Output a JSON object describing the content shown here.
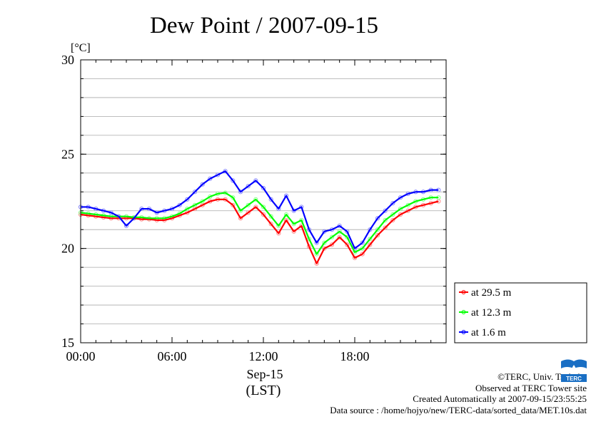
{
  "title": "Dew Point / 2007-09-15",
  "chart_data": {
    "type": "line",
    "title": "Dew Point / 2007-09-15",
    "ylabel": "[°C]",
    "xlabel_lines": [
      "Sep-15",
      "(LST)"
    ],
    "xlim": [
      0,
      24
    ],
    "ylim": [
      15,
      30
    ],
    "x_ticks": [
      0,
      6,
      12,
      18
    ],
    "x_tick_labels": [
      "00:00",
      "06:00",
      "12:00",
      "18:00"
    ],
    "y_ticks": [
      15,
      20,
      25,
      30
    ],
    "y_tick_labels": [
      "15",
      "20",
      "25",
      "30"
    ],
    "y_minor_step": 1,
    "grid": true,
    "legend_position": "bottom-right-outside",
    "x_unit": "hours (LST)",
    "series": [
      {
        "name": "at 29.5 m",
        "color": "#ff0000",
        "x": [
          0,
          0.5,
          1,
          1.5,
          2,
          2.5,
          3,
          3.5,
          4,
          4.5,
          5,
          5.5,
          6,
          6.5,
          7,
          7.5,
          8,
          8.5,
          9,
          9.5,
          10,
          10.5,
          11,
          11.5,
          12,
          12.5,
          13,
          13.5,
          14,
          14.5,
          15,
          15.5,
          16,
          16.5,
          17,
          17.5,
          18,
          18.5,
          19,
          19.5,
          20,
          20.5,
          21,
          21.5,
          22,
          22.5,
          23,
          23.5
        ],
        "values": [
          21.8,
          21.75,
          21.7,
          21.65,
          21.6,
          21.6,
          21.6,
          21.6,
          21.55,
          21.55,
          21.5,
          21.5,
          21.6,
          21.75,
          21.9,
          22.1,
          22.3,
          22.5,
          22.6,
          22.6,
          22.3,
          21.6,
          21.9,
          22.2,
          21.8,
          21.3,
          20.8,
          21.5,
          20.9,
          21.2,
          20.1,
          19.2,
          20.0,
          20.2,
          20.6,
          20.2,
          19.5,
          19.7,
          20.2,
          20.7,
          21.1,
          21.5,
          21.8,
          22.0,
          22.2,
          22.3,
          22.4,
          22.5
        ]
      },
      {
        "name": "at 12.3 m",
        "color": "#00ff00",
        "x": [
          0,
          0.5,
          1,
          1.5,
          2,
          2.5,
          3,
          3.5,
          4,
          4.5,
          5,
          5.5,
          6,
          6.5,
          7,
          7.5,
          8,
          8.5,
          9,
          9.5,
          10,
          10.5,
          11,
          11.5,
          12,
          12.5,
          13,
          13.5,
          14,
          14.5,
          15,
          15.5,
          16,
          16.5,
          17,
          17.5,
          18,
          18.5,
          19,
          19.5,
          20,
          20.5,
          21,
          21.5,
          22,
          22.5,
          23,
          23.5
        ],
        "values": [
          21.9,
          21.85,
          21.8,
          21.75,
          21.7,
          21.7,
          21.7,
          21.65,
          21.65,
          21.6,
          21.6,
          21.6,
          21.7,
          21.85,
          22.1,
          22.3,
          22.5,
          22.75,
          22.9,
          22.95,
          22.7,
          22.0,
          22.3,
          22.6,
          22.2,
          21.7,
          21.2,
          21.8,
          21.3,
          21.5,
          20.5,
          19.7,
          20.3,
          20.6,
          20.9,
          20.6,
          19.8,
          20.0,
          20.5,
          21.0,
          21.5,
          21.8,
          22.1,
          22.3,
          22.5,
          22.6,
          22.7,
          22.7
        ]
      },
      {
        "name": "at 1.6 m",
        "color": "#0000ff",
        "x": [
          0,
          0.5,
          1,
          1.5,
          2,
          2.5,
          3,
          3.5,
          4,
          4.5,
          5,
          5.5,
          6,
          6.5,
          7,
          7.5,
          8,
          8.5,
          9,
          9.5,
          10,
          10.5,
          11,
          11.5,
          12,
          12.5,
          13,
          13.5,
          14,
          14.5,
          15,
          15.5,
          16,
          16.5,
          17,
          17.5,
          18,
          18.5,
          19,
          19.5,
          20,
          20.5,
          21,
          21.5,
          22,
          22.5,
          23,
          23.5
        ],
        "values": [
          22.2,
          22.2,
          22.1,
          22.0,
          21.9,
          21.7,
          21.2,
          21.6,
          22.1,
          22.1,
          21.9,
          22.0,
          22.1,
          22.3,
          22.6,
          23.0,
          23.4,
          23.7,
          23.9,
          24.1,
          23.6,
          23.0,
          23.3,
          23.6,
          23.2,
          22.6,
          22.1,
          22.8,
          22.0,
          22.2,
          21.0,
          20.3,
          20.9,
          21.0,
          21.2,
          20.9,
          20.0,
          20.3,
          21.0,
          21.6,
          22.0,
          22.4,
          22.7,
          22.9,
          23.0,
          23.0,
          23.1,
          23.1
        ]
      }
    ]
  },
  "credits": {
    "copyright": "©TERC, Univ. Tsukuba",
    "observed": "Observed at TERC Tower site",
    "created": "Created Automatically at 2007-09-15/23:55:25",
    "source": "Data source : /home/hojyo/new/TERC-data/sorted_data/MET.10s.dat"
  },
  "logo": {
    "icon": "terc-logo-icon",
    "text": "TERC",
    "color": "#1a6fc4"
  }
}
